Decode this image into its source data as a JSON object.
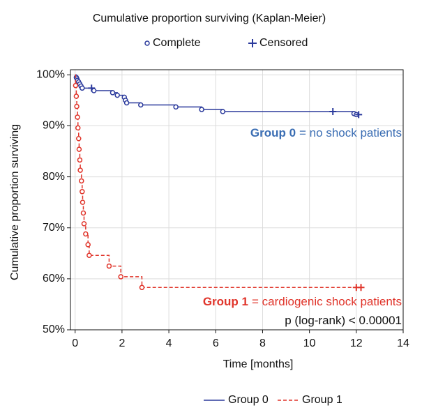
{
  "chart_data": {
    "type": "kaplan-meier",
    "title": "Cumulative proportion surviving (Kaplan-Meier)",
    "marker_legend": {
      "complete": "Complete",
      "censored": "Censored"
    },
    "xlabel": "Time [months]",
    "ylabel": "Cumulative proportion surviving",
    "xlim": [
      -0.2,
      14
    ],
    "ylim": [
      50,
      101
    ],
    "xticks": [
      0,
      2,
      4,
      6,
      8,
      10,
      12,
      14
    ],
    "yticks": [
      {
        "value": 50,
        "label": "50%"
      },
      {
        "value": 60,
        "label": "60%"
      },
      {
        "value": 70,
        "label": "70%"
      },
      {
        "value": 80,
        "label": "80%"
      },
      {
        "value": 90,
        "label": "90%"
      },
      {
        "value": 100,
        "label": "100%"
      }
    ],
    "grid": true,
    "series": [
      {
        "name": "Group 0",
        "color": "#2b3a9c",
        "dashed": false,
        "x": [
          0,
          0.05,
          0.08,
          0.1,
          0.15,
          0.2,
          0.25,
          0.3,
          0.8,
          1.6,
          1.8,
          2.1,
          2.15,
          2.2,
          2.8,
          4.3,
          5.4,
          6.3,
          11.9,
          12.0,
          12.1
        ],
        "values": [
          100,
          99.5,
          99.2,
          98.9,
          98.6,
          98.2,
          97.8,
          97.4,
          96.9,
          96.5,
          96.0,
          95.6,
          95.0,
          94.5,
          94.1,
          93.7,
          93.2,
          92.8,
          92.4,
          92.2,
          92.2
        ],
        "complete": {
          "x": [
            0.05,
            0.08,
            0.1,
            0.15,
            0.2,
            0.25,
            0.3,
            0.8,
            1.6,
            1.8,
            2.1,
            2.15,
            2.2,
            2.8,
            4.3,
            5.4,
            6.3,
            11.9,
            12.0
          ],
          "values": [
            99.5,
            99.2,
            98.9,
            98.6,
            98.2,
            97.8,
            97.4,
            96.9,
            96.5,
            96.0,
            95.6,
            95.0,
            94.5,
            94.1,
            93.7,
            93.2,
            92.8,
            92.4,
            92.2
          ]
        },
        "censored": {
          "x": [
            0.7,
            11.0,
            12.1
          ],
          "values": [
            97.4,
            92.8,
            92.2
          ]
        }
      },
      {
        "name": "Group 1",
        "color": "#e0342a",
        "dashed": true,
        "x": [
          0,
          0.02,
          0.05,
          0.07,
          0.1,
          0.12,
          0.15,
          0.17,
          0.2,
          0.22,
          0.27,
          0.3,
          0.32,
          0.35,
          0.38,
          0.45,
          0.55,
          0.6,
          1.45,
          1.95,
          2.85,
          12.2
        ],
        "values": [
          100,
          97.9,
          95.8,
          93.8,
          91.7,
          89.6,
          87.5,
          85.4,
          83.3,
          81.3,
          79.2,
          77.1,
          75,
          72.9,
          70.8,
          68.8,
          66.7,
          64.6,
          62.5,
          60.4,
          58.3,
          58.3
        ],
        "complete": {
          "x": [
            0.02,
            0.05,
            0.07,
            0.1,
            0.12,
            0.15,
            0.17,
            0.2,
            0.22,
            0.27,
            0.3,
            0.32,
            0.35,
            0.38,
            0.45,
            0.55,
            0.6,
            1.45,
            1.95,
            2.85
          ],
          "values": [
            97.9,
            95.8,
            93.8,
            91.7,
            89.6,
            87.5,
            85.4,
            83.3,
            81.3,
            79.2,
            77.1,
            75,
            72.9,
            70.8,
            68.8,
            66.7,
            64.6,
            62.5,
            60.4,
            58.3
          ]
        },
        "censored": {
          "x": [
            12.0,
            12.2
          ],
          "values": [
            58.3,
            58.3
          ]
        }
      }
    ],
    "annotations": [
      {
        "label": "Group 0",
        "text": "= no shock patients",
        "color": "#3a6db3"
      },
      {
        "label": "Group 1",
        "text": "= cardiogenic shock patients",
        "color": "#e0342a"
      },
      {
        "text": "p (log-rank) < 0.00001",
        "color": "#111111"
      }
    ]
  }
}
